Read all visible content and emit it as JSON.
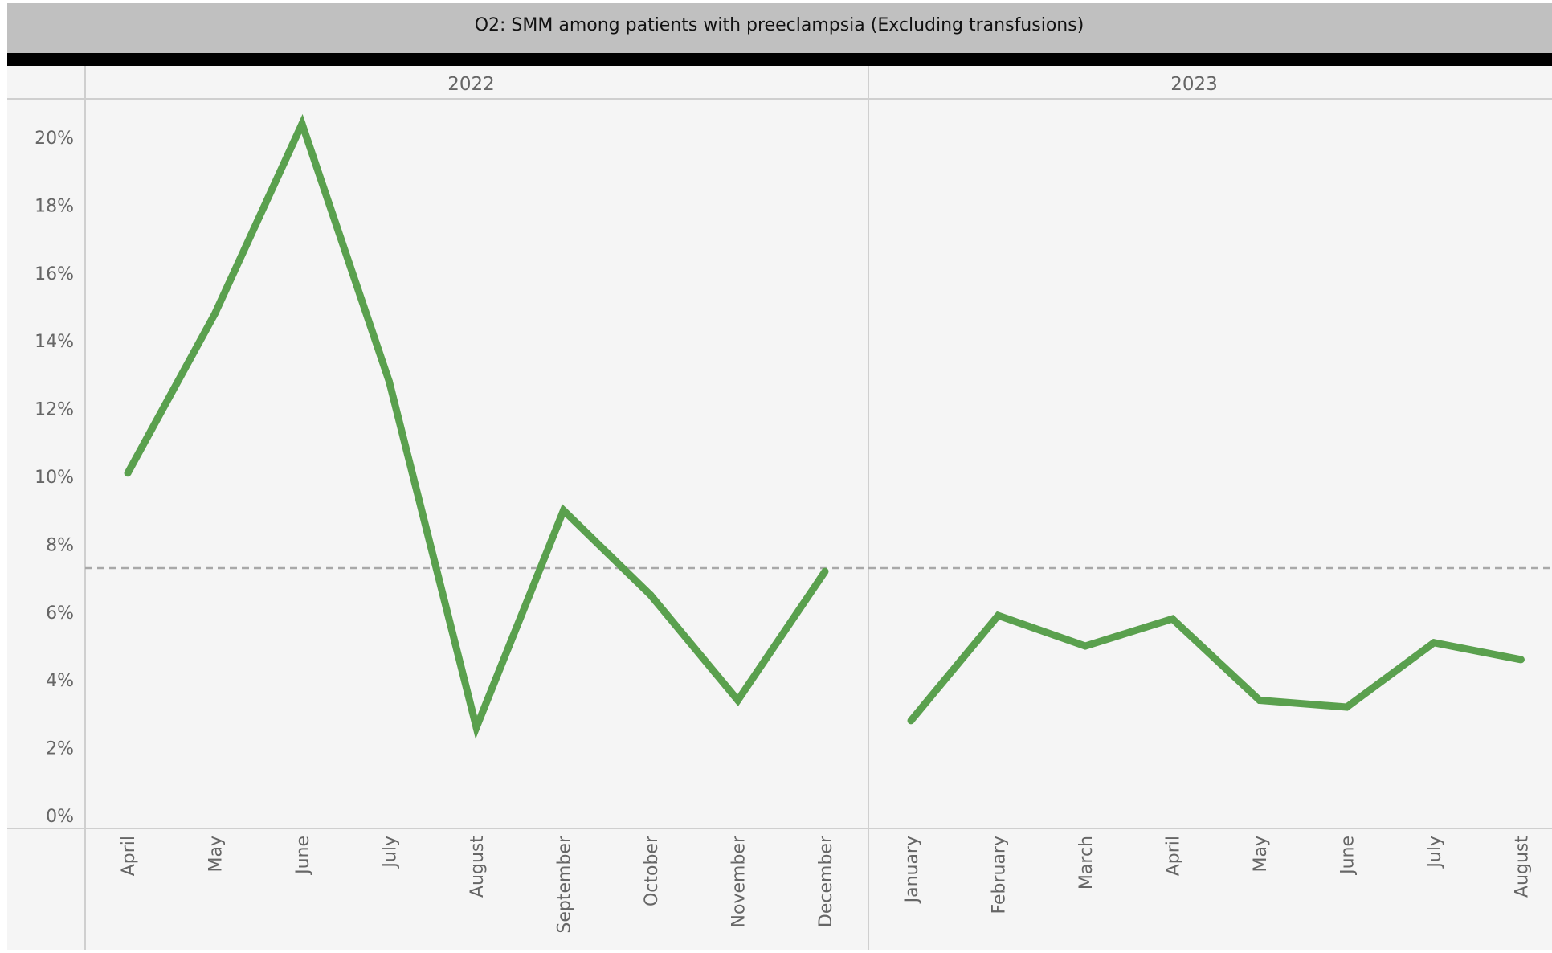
{
  "chart_data": {
    "type": "line",
    "title": "O2: SMM among patients with preeclampsia (Excluding transfusions)",
    "panels": [
      {
        "year": "2022",
        "categories": [
          "April",
          "May",
          "June",
          "July",
          "August",
          "September",
          "October",
          "November",
          "December"
        ],
        "values": [
          10.1,
          14.8,
          20.4,
          12.8,
          2.6,
          9.0,
          6.5,
          3.4,
          7.2
        ]
      },
      {
        "year": "2023",
        "categories": [
          "January",
          "February",
          "March",
          "April",
          "May",
          "June",
          "July",
          "August"
        ],
        "values": [
          2.8,
          5.9,
          5.0,
          5.8,
          3.4,
          3.2,
          5.1,
          4.6
        ]
      }
    ],
    "reference_line": 7.3,
    "ylim": [
      0,
      21.2
    ],
    "yticks": [
      0,
      2,
      4,
      6,
      8,
      10,
      12,
      14,
      16,
      18,
      20
    ],
    "ytick_labels": [
      "0%",
      "2%",
      "4%",
      "6%",
      "8%",
      "10%",
      "12%",
      "14%",
      "16%",
      "18%",
      "20%"
    ],
    "colors": {
      "line": "#5aa04e",
      "reference": "#a8a8a8",
      "title_bar": "#c0c0c0",
      "plot_bg": "#f5f5f5"
    }
  }
}
